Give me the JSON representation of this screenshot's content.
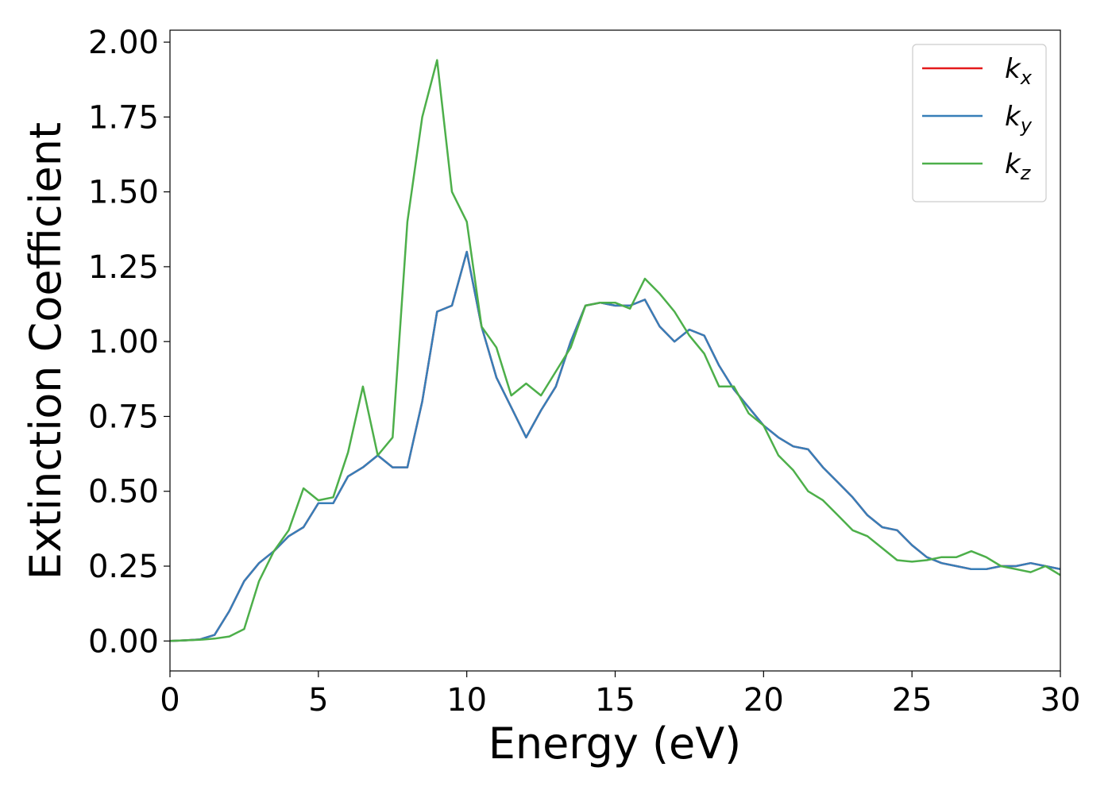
{
  "chart_data": {
    "type": "line",
    "xlabel": "Energy (eV)",
    "ylabel": "Extinction Coefficient",
    "x": [
      0,
      0.5,
      1,
      1.5,
      2,
      2.5,
      3,
      3.5,
      4,
      4.5,
      5,
      5.5,
      6,
      6.5,
      7,
      7.5,
      8,
      8.5,
      9,
      9.5,
      10,
      10.5,
      11,
      11.5,
      12,
      12.5,
      13,
      13.5,
      14,
      14.5,
      15,
      15.5,
      16,
      16.5,
      17,
      17.5,
      18,
      18.5,
      19,
      19.5,
      20,
      20.5,
      21,
      21.5,
      22,
      22.5,
      23,
      23.5,
      24,
      24.5,
      25,
      25.5,
      26,
      26.5,
      27,
      27.5,
      28,
      28.5,
      29,
      29.5,
      30
    ],
    "series": [
      {
        "name": "kx",
        "color": "#e41a1c",
        "values": [
          0,
          0.002,
          0.005,
          0.02,
          0.1,
          0.2,
          0.26,
          0.3,
          0.35,
          0.38,
          0.46,
          0.46,
          0.55,
          0.58,
          0.62,
          0.58,
          0.58,
          0.8,
          1.1,
          1.12,
          1.3,
          1.05,
          0.88,
          0.78,
          0.68,
          0.77,
          0.85,
          1.0,
          1.12,
          1.13,
          1.12,
          1.12,
          1.14,
          1.05,
          1.0,
          1.04,
          1.02,
          0.92,
          0.84,
          0.78,
          0.72,
          0.68,
          0.65,
          0.64,
          0.58,
          0.53,
          0.48,
          0.42,
          0.38,
          0.37,
          0.32,
          0.28,
          0.26,
          0.25,
          0.24,
          0.24,
          0.25,
          0.25,
          0.26,
          0.25,
          0.24
        ]
      },
      {
        "name": "ky",
        "color": "#377eb8",
        "values": [
          0,
          0.002,
          0.005,
          0.02,
          0.1,
          0.2,
          0.26,
          0.3,
          0.35,
          0.38,
          0.46,
          0.46,
          0.55,
          0.58,
          0.62,
          0.58,
          0.58,
          0.8,
          1.1,
          1.12,
          1.3,
          1.05,
          0.88,
          0.78,
          0.68,
          0.77,
          0.85,
          1.0,
          1.12,
          1.13,
          1.12,
          1.12,
          1.14,
          1.05,
          1.0,
          1.04,
          1.02,
          0.92,
          0.84,
          0.78,
          0.72,
          0.68,
          0.65,
          0.64,
          0.58,
          0.53,
          0.48,
          0.42,
          0.38,
          0.37,
          0.32,
          0.28,
          0.26,
          0.25,
          0.24,
          0.24,
          0.25,
          0.25,
          0.26,
          0.25,
          0.24
        ]
      },
      {
        "name": "kz",
        "color": "#4daf4a",
        "values": [
          0,
          0.002,
          0.004,
          0.008,
          0.015,
          0.04,
          0.2,
          0.3,
          0.37,
          0.51,
          0.47,
          0.48,
          0.63,
          0.85,
          0.62,
          0.68,
          1.4,
          1.75,
          1.94,
          1.5,
          1.4,
          1.05,
          0.98,
          0.82,
          0.86,
          0.82,
          0.9,
          0.98,
          1.12,
          1.13,
          1.13,
          1.11,
          1.21,
          1.16,
          1.1,
          1.02,
          0.96,
          0.85,
          0.85,
          0.76,
          0.72,
          0.62,
          0.57,
          0.5,
          0.47,
          0.42,
          0.37,
          0.35,
          0.31,
          0.27,
          0.265,
          0.27,
          0.28,
          0.28,
          0.3,
          0.28,
          0.25,
          0.24,
          0.23,
          0.25,
          0.22
        ]
      }
    ],
    "xlim": [
      0,
      30
    ],
    "xticks": [
      0,
      5,
      10,
      15,
      20,
      25,
      30
    ],
    "ylim": [
      -0.1,
      2.04
    ],
    "yticks": [
      {
        "value": 0,
        "label": "0.00"
      },
      {
        "value": 0.25,
        "label": "0.25"
      },
      {
        "value": 0.5,
        "label": "0.50"
      },
      {
        "value": 0.75,
        "label": "0.75"
      },
      {
        "value": 1,
        "label": "1.00"
      },
      {
        "value": 1.25,
        "label": "1.25"
      },
      {
        "value": 1.5,
        "label": "1.50"
      },
      {
        "value": 1.75,
        "label": "1.75"
      },
      {
        "value": 2,
        "label": "2.00"
      }
    ],
    "legend": "upper right",
    "grid": false
  }
}
